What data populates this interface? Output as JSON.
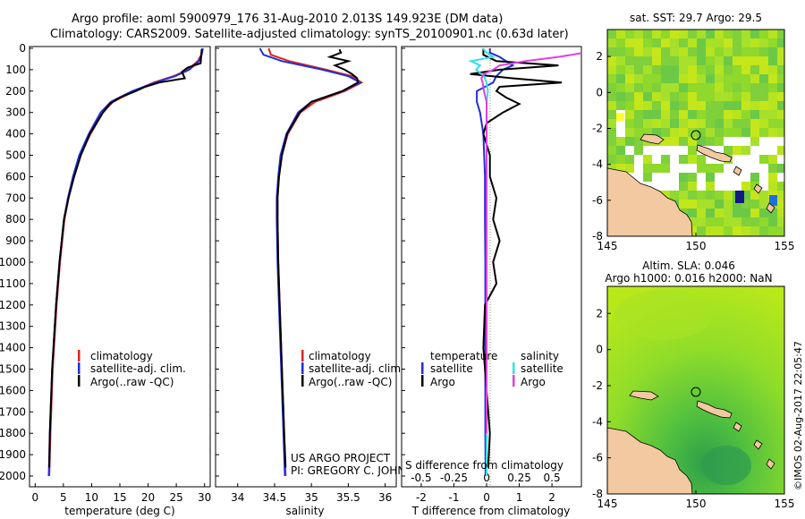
{
  "header": {
    "line1": "Argo profile: aoml 5900979_176 31-Aug-2010 2.013S 149.923E (DM data)",
    "line2": "Climatology: CARS2009. Satellite-adjusted climatology: synTS_20100901.nc (0.63d later)"
  },
  "legend_profiles": [
    "climatology",
    "satellite-adj. clim.",
    "Argo(..raw -QC)"
  ],
  "legend_diff": {
    "temperature_head": "temperature",
    "salinity_head": "salinity",
    "satellite": "satellite",
    "argo": "Argo"
  },
  "project": {
    "line1": "US ARGO PROJECT",
    "line2": "PI: GREGORY C. JOHNSON"
  },
  "credit": "©IMOS 02-Aug-2017 22:05:47",
  "colors": {
    "climatology": "#dd2222",
    "satellite": "#1f2fd8",
    "argo": "#000000",
    "sal_satellite": "#33e0e8",
    "sal_argo": "#e040e0",
    "land": "#f2c9a0",
    "sea_green": "#6fd14a"
  },
  "chart_data": [
    {
      "type": "line",
      "name_panel": "temperature",
      "xlabel": "temperature (deg C)",
      "ylim": [
        0,
        2050
      ],
      "xlim": [
        -1,
        31
      ],
      "xticks": [
        0,
        5,
        10,
        15,
        20,
        25,
        30
      ],
      "yticks": [
        0,
        100,
        200,
        300,
        400,
        500,
        600,
        700,
        800,
        900,
        1000,
        1100,
        1200,
        1300,
        1400,
        1500,
        1600,
        1700,
        1800,
        1900,
        2000
      ],
      "y_reversed": true,
      "series": [
        {
          "name": "climatology",
          "depth": [
            0,
            30,
            60,
            100,
            130,
            160,
            200,
            250,
            300,
            400,
            500,
            600,
            700,
            800,
            1000,
            1200,
            1500,
            1800,
            2000
          ],
          "values": [
            29.6,
            29.4,
            28.8,
            27.0,
            24.5,
            21.0,
            17.5,
            13.8,
            12.0,
            9.8,
            8.0,
            6.8,
            5.9,
            5.2,
            4.4,
            3.8,
            3.1,
            2.7,
            2.5
          ]
        },
        {
          "name": "satellite-adj. clim.",
          "depth": [
            0,
            30,
            60,
            100,
            130,
            160,
            200,
            250,
            300,
            400,
            500,
            600,
            700,
            800,
            1000,
            1200,
            1500,
            1800,
            2000
          ],
          "values": [
            29.7,
            29.5,
            29.0,
            27.3,
            24.8,
            21.3,
            17.2,
            13.4,
            11.6,
            9.5,
            7.8,
            6.7,
            5.8,
            5.1,
            4.3,
            3.7,
            3.0,
            2.6,
            2.4
          ]
        },
        {
          "name": "Argo(..raw -QC)",
          "depth": [
            5,
            40,
            70,
            90,
            110,
            140,
            160,
            180,
            200,
            230,
            260,
            300,
            400,
            500,
            600,
            700,
            800,
            1000,
            1200,
            1500,
            1800,
            1960
          ],
          "values": [
            29.5,
            29.4,
            29.3,
            27.0,
            26.0,
            26.5,
            22.0,
            19.5,
            17.8,
            15.0,
            13.2,
            12.0,
            9.7,
            8.1,
            6.9,
            5.9,
            5.1,
            4.3,
            3.7,
            3.0,
            2.6,
            2.5
          ]
        }
      ]
    },
    {
      "type": "line",
      "name_panel": "salinity",
      "xlabel": "salinity",
      "ylim": [
        0,
        2050
      ],
      "xlim": [
        33.7,
        36.15
      ],
      "xticks": [
        34,
        34.5,
        35,
        35.5,
        36
      ],
      "y_reversed": true,
      "series": [
        {
          "name": "climatology",
          "depth": [
            0,
            30,
            60,
            100,
            130,
            160,
            200,
            250,
            300,
            400,
            500,
            600,
            700,
            800,
            1000,
            1200,
            1500,
            1800,
            2000
          ],
          "values": [
            34.42,
            34.45,
            34.7,
            35.2,
            35.55,
            35.68,
            35.45,
            35.05,
            34.85,
            34.68,
            34.6,
            34.56,
            34.54,
            34.54,
            34.55,
            34.57,
            34.6,
            34.63,
            34.65
          ]
        },
        {
          "name": "satellite-adj. clim.",
          "depth": [
            0,
            30,
            60,
            100,
            130,
            160,
            200,
            250,
            300,
            400,
            500,
            600,
            700,
            800,
            1000,
            1200,
            1500,
            1800,
            2000
          ],
          "values": [
            34.3,
            34.35,
            34.6,
            35.15,
            35.5,
            35.66,
            35.42,
            35.0,
            34.82,
            34.66,
            34.58,
            34.55,
            34.53,
            34.53,
            34.54,
            34.56,
            34.59,
            34.62,
            34.64
          ]
        },
        {
          "name": "Argo(..raw -QC)",
          "depth": [
            5,
            20,
            40,
            60,
            80,
            100,
            120,
            140,
            160,
            200,
            250,
            300,
            400,
            500,
            600,
            700,
            800,
            1000,
            1200,
            1500,
            1800,
            1960
          ],
          "values": [
            35.38,
            35.4,
            35.25,
            35.5,
            35.32,
            35.45,
            35.55,
            35.62,
            35.63,
            35.42,
            35.0,
            34.84,
            34.67,
            34.6,
            34.56,
            34.54,
            34.54,
            34.55,
            34.57,
            34.6,
            34.63,
            34.65
          ]
        }
      ]
    },
    {
      "type": "line",
      "name_panel": "difference",
      "xlabel": "T difference from climatology",
      "xlabel_top": "S difference from climatology",
      "ylim": [
        0,
        2050
      ],
      "xlim": [
        -2.6,
        2.9
      ],
      "xticks_bottom": [
        -2,
        -1,
        0,
        1,
        2
      ],
      "xticks_top": [
        "-0.5",
        "-0.25",
        "0",
        "0.25",
        "0.5"
      ],
      "y_reversed": true,
      "series": [
        {
          "name": "temperature satellite",
          "depth": [
            0,
            20,
            40,
            60,
            80,
            100,
            130,
            160,
            200,
            250,
            300,
            400,
            600,
            800,
            1000,
            1400,
            1800,
            2000
          ],
          "values": [
            0.1,
            0.1,
            0.4,
            0.6,
            0.8,
            0.5,
            0.3,
            0.2,
            -0.3,
            -0.3,
            -0.2,
            -0.1,
            -0.05,
            -0.05,
            -0.04,
            -0.04,
            -0.04,
            -0.03
          ]
        },
        {
          "name": "temperature Argo",
          "depth": [
            0,
            30,
            60,
            80,
            100,
            120,
            140,
            160,
            180,
            200,
            230,
            260,
            300,
            350,
            400,
            500,
            600,
            700,
            800,
            900,
            1000,
            1100,
            1200,
            1400,
            1600,
            1800,
            1960
          ],
          "values": [
            -0.1,
            -0.1,
            0.3,
            2.2,
            0.4,
            -0.5,
            0.8,
            2.3,
            0.4,
            0.3,
            0.6,
            1.0,
            0.5,
            0.0,
            -0.1,
            0.1,
            0.1,
            0.3,
            0.2,
            0.4,
            0.2,
            0.3,
            -0.05,
            -0.1,
            0.0,
            0.1,
            0.05
          ]
        },
        {
          "name": "salinity satellite",
          "depth": [
            0,
            20,
            40,
            60,
            80,
            100,
            130,
            160,
            200,
            250,
            300,
            400,
            600,
            800,
            1000,
            1400,
            1800,
            2000
          ],
          "values": [
            -0.03,
            0.0,
            0.05,
            -0.12,
            -0.05,
            -0.08,
            -0.02,
            0.0,
            0.01,
            0.0,
            0.0,
            0.0,
            0.0,
            0.0,
            0.0,
            0.0,
            0.0,
            0.0
          ]
        },
        {
          "name": "salinity Argo",
          "depth": [
            0,
            20,
            40,
            60,
            80,
            100,
            120,
            140,
            160,
            200,
            250,
            300,
            400,
            600,
            800,
            1000,
            1400,
            1800
          ],
          "values": [
            0.9,
            0.75,
            0.55,
            0.3,
            0.1,
            0.05,
            -0.02,
            -0.04,
            -0.03,
            -0.02,
            0.0,
            0.0,
            0.0,
            0.0,
            0.0,
            0.0,
            0.0,
            0.0
          ]
        }
      ]
    },
    {
      "type": "heatmap",
      "name_panel": "sst map",
      "title": "sat. SST: 29.7  Argo: 29.5",
      "xlim": [
        145,
        155
      ],
      "ylim": [
        -8,
        3.5
      ],
      "xticks": [
        145,
        150,
        155
      ],
      "yticks": [
        2,
        0,
        -2,
        -4,
        -6,
        -8
      ],
      "marker": {
        "lon": 149.923,
        "lat": -2.013
      }
    },
    {
      "type": "heatmap",
      "name_panel": "sla map",
      "title_line1": "Altim. SLA: 0.046",
      "title_line2": "Argo h1000: 0.016  h2000: NaN",
      "xlim": [
        145,
        155
      ],
      "ylim": [
        -8,
        3.5
      ],
      "xticks": [
        145,
        150,
        155
      ],
      "yticks": [
        2,
        0,
        -2,
        -4,
        -6,
        -8
      ],
      "marker": {
        "lon": 149.923,
        "lat": -2.013
      }
    }
  ]
}
